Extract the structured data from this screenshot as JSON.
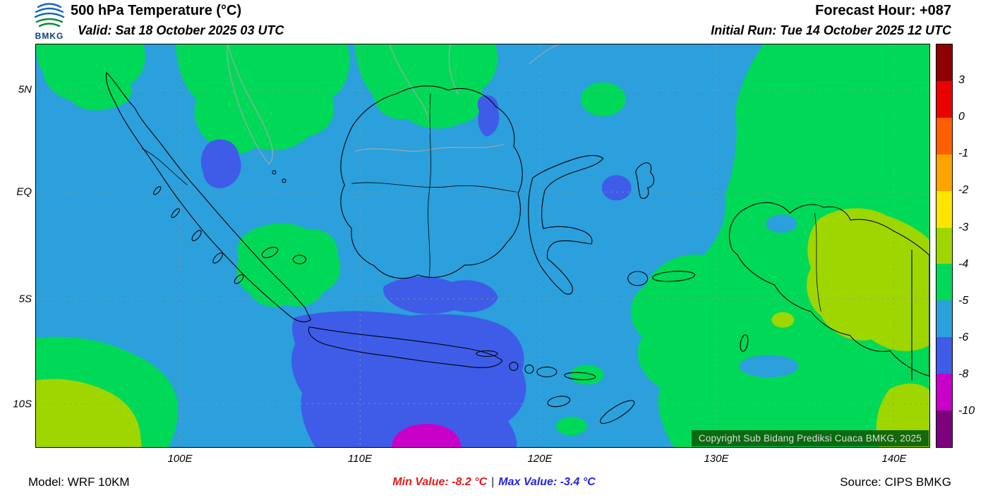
{
  "header": {
    "logo_text": "BMKG",
    "title": "500 hPa Temperature (°C)",
    "valid_line": "Valid: Sat 18 October 2025 03 UTC",
    "forecast_hour": "Forecast Hour: +087",
    "initial_run": "Initial Run: Tue 14 October 2025 12 UTC"
  },
  "map": {
    "y_axis_labels": [
      "5N",
      "EQ",
      "5S",
      "10S"
    ],
    "x_axis_labels": [
      "100E",
      "110E",
      "120E",
      "130E",
      "140E"
    ],
    "copyright": "Copyright Sub Bidang Prediksi Cuaca BMKG, 2025"
  },
  "colorbar": {
    "labels": [
      "3",
      "0",
      "-1",
      "-2",
      "-3",
      "-4",
      "-5",
      "-6",
      "-8",
      "-10"
    ],
    "colors": [
      "#8f0000",
      "#eb0000",
      "#ff5f00",
      "#ffa300",
      "#ffe600",
      "#9fd600",
      "#00d957",
      "#2ba0dc",
      "#3e5ce8",
      "#c800c8",
      "#7d007d"
    ]
  },
  "palette": {
    "sea": "#2ba0dc",
    "green": "#00d957",
    "ygreen": "#9fd600",
    "coldblue": "#3e5ce8",
    "magenta": "#c800c8",
    "coast": "#000000",
    "bordergrey": "#a8a8a8",
    "grid": "#8f9aa0"
  },
  "footer": {
    "model": "Model: WRF 10KM",
    "min_text": "Min Value: -8.2 °C",
    "separator": "|",
    "max_text": "Max Value: -3.4 °C",
    "source": "Source: CIPS BMKG"
  }
}
